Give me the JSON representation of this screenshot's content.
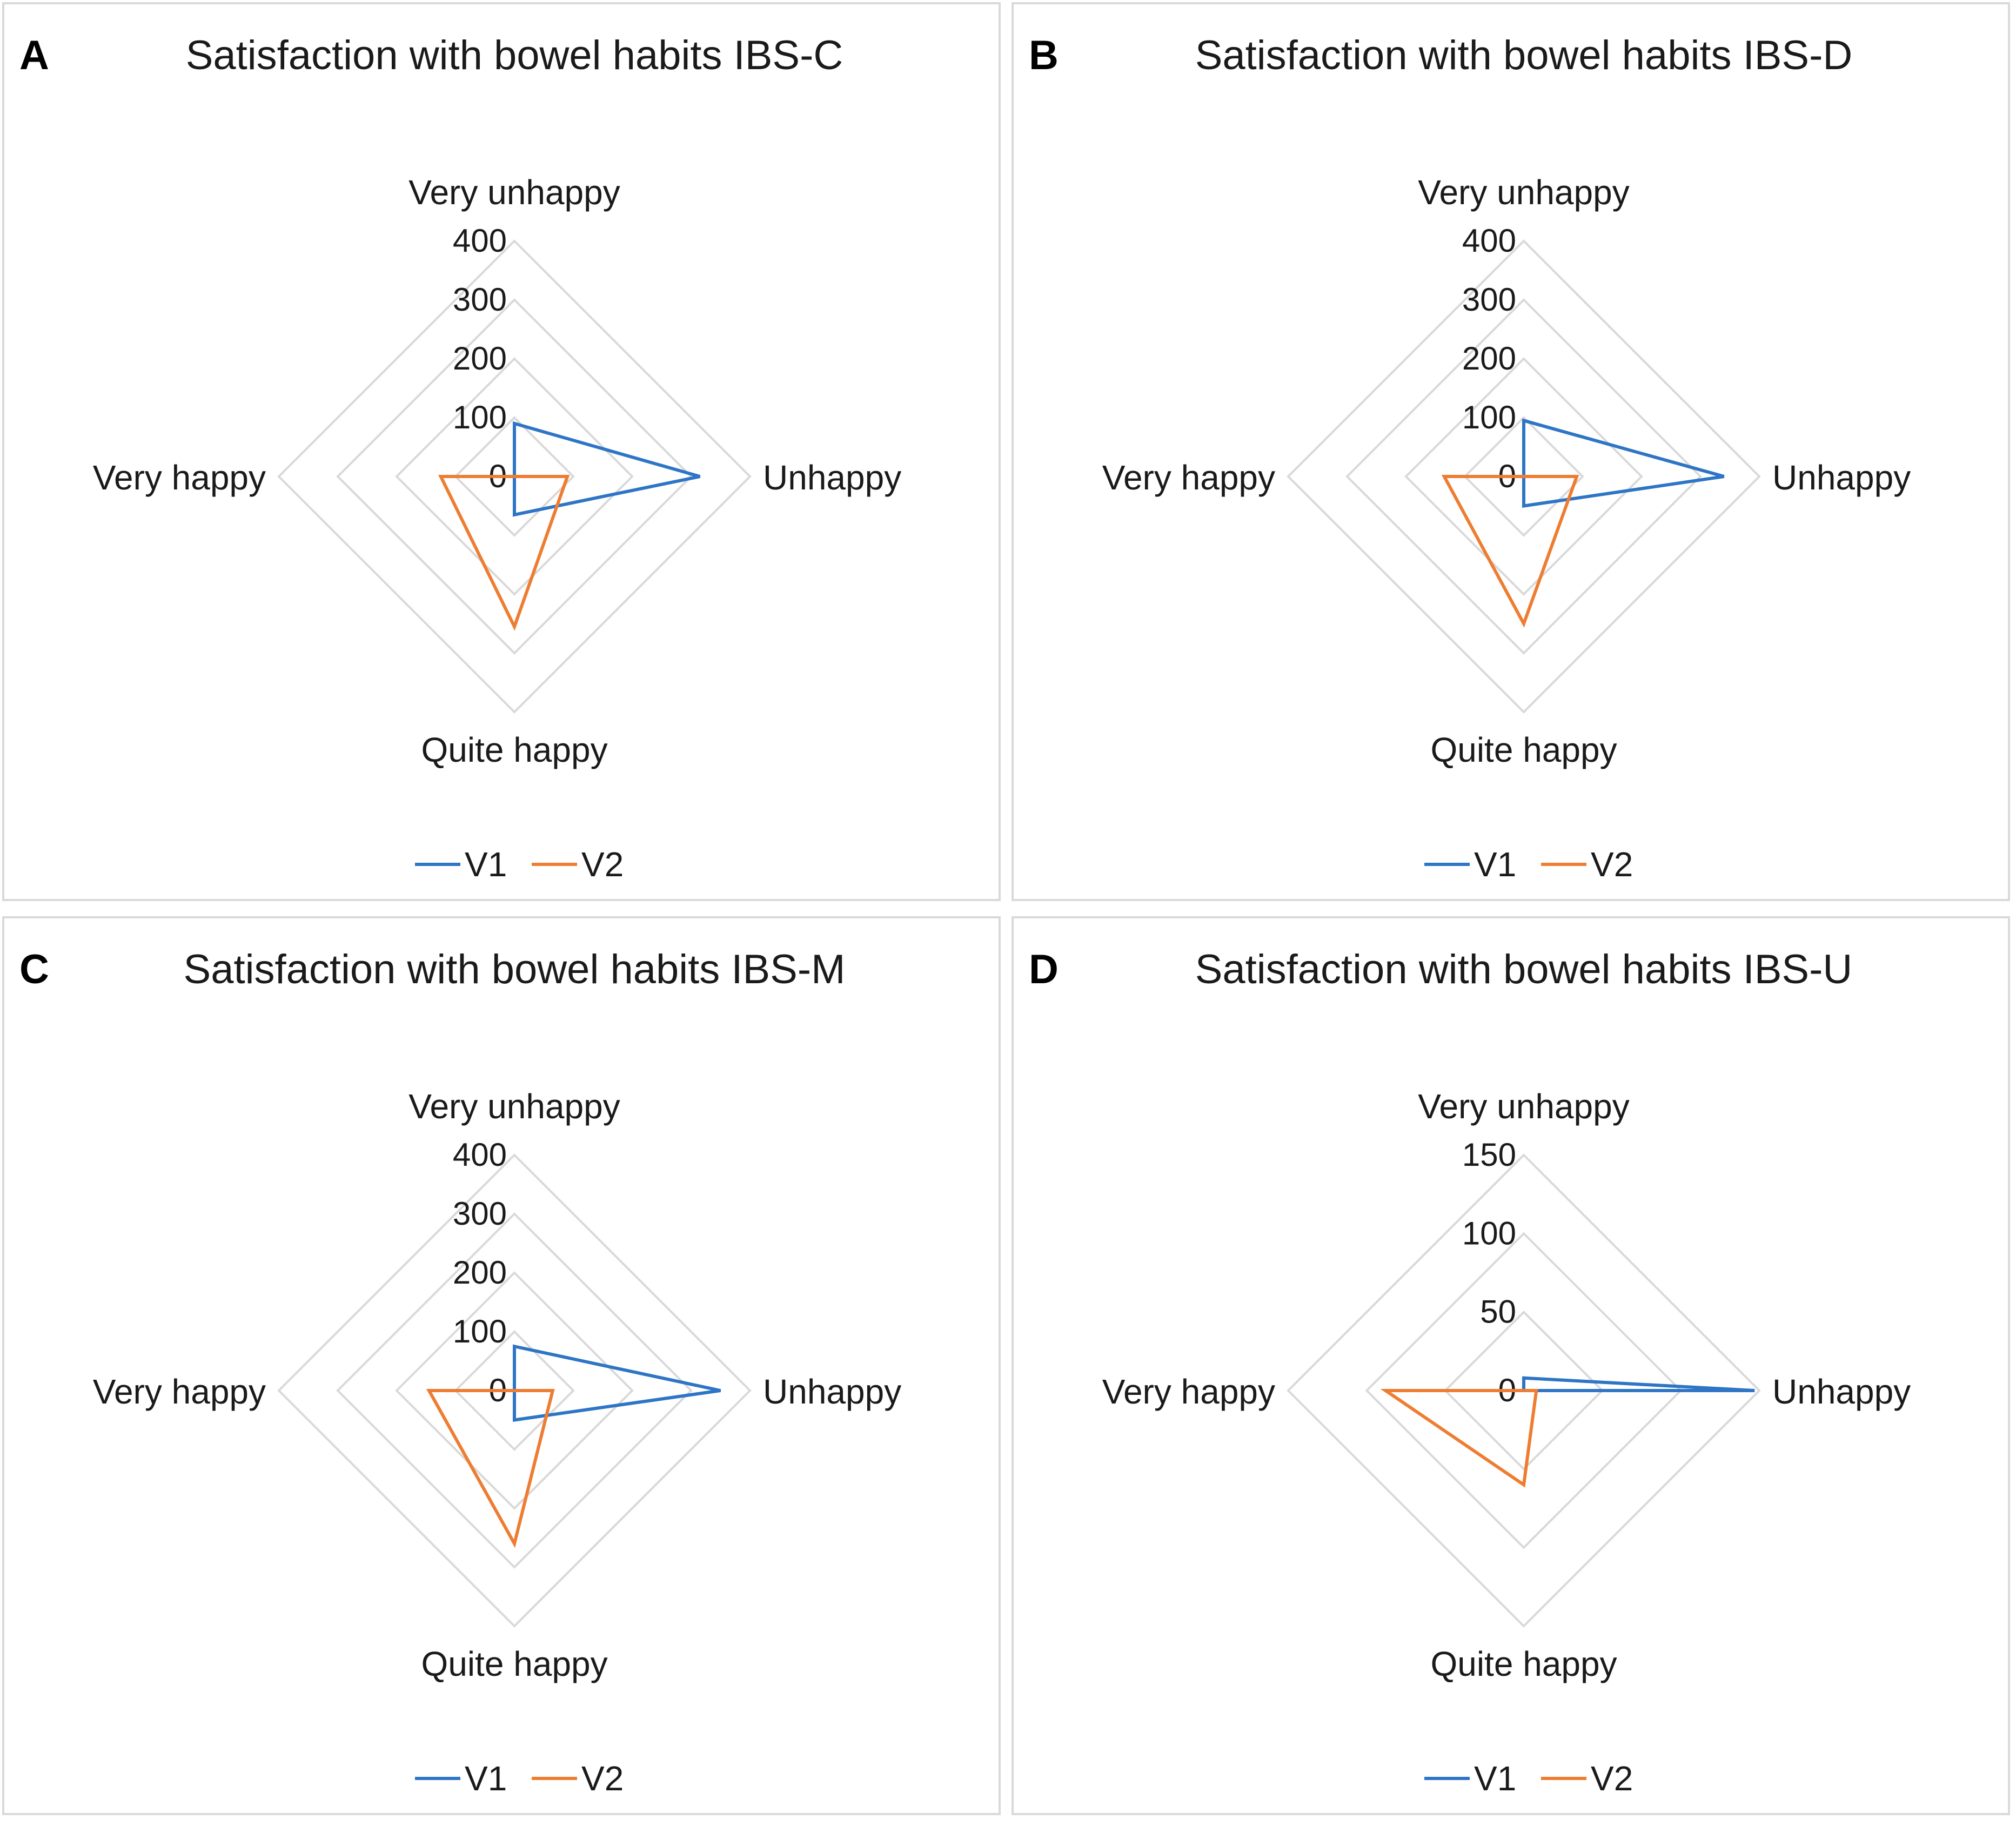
{
  "figure": {
    "series_colors": {
      "V1": "#2e75c6",
      "V2": "#ee7d31"
    },
    "grid_color": "#d9d9d9"
  },
  "chart_data": [
    {
      "type": "radar",
      "panel_letter": "A",
      "title": "Satisfaction with bowel habits IBS-C",
      "categories": [
        "Very unhappy",
        "Unhappy",
        "Quite happy",
        "Very happy"
      ],
      "ticks": [
        0,
        100,
        200,
        300,
        400
      ],
      "tick_labels": [
        "0",
        "100",
        "200",
        "300",
        "400"
      ],
      "rmax": 400,
      "series": [
        {
          "name": "V1",
          "values": [
            90,
            315,
            65,
            0
          ]
        },
        {
          "name": "V2",
          "values": [
            0,
            90,
            255,
            125
          ]
        }
      ],
      "legend": [
        "V1",
        "V2"
      ]
    },
    {
      "type": "radar",
      "panel_letter": "B",
      "title": "Satisfaction with bowel habits IBS-D",
      "categories": [
        "Very unhappy",
        "Unhappy",
        "Quite happy",
        "Very happy"
      ],
      "ticks": [
        0,
        100,
        200,
        300,
        400
      ],
      "tick_labels": [
        "0",
        "100",
        "200",
        "300",
        "400"
      ],
      "rmax": 400,
      "series": [
        {
          "name": "V1",
          "values": [
            95,
            340,
            50,
            0
          ]
        },
        {
          "name": "V2",
          "values": [
            0,
            90,
            250,
            135
          ]
        }
      ],
      "legend": [
        "V1",
        "V2"
      ]
    },
    {
      "type": "radar",
      "panel_letter": "C",
      "title": "Satisfaction with bowel habits IBS-M",
      "categories": [
        "Very unhappy",
        "Unhappy",
        "Quite happy",
        "Very happy"
      ],
      "ticks": [
        0,
        100,
        200,
        300,
        400
      ],
      "tick_labels": [
        "0",
        "100",
        "200",
        "300",
        "400"
      ],
      "rmax": 400,
      "series": [
        {
          "name": "V1",
          "values": [
            75,
            350,
            50,
            0
          ]
        },
        {
          "name": "V2",
          "values": [
            0,
            65,
            260,
            145
          ]
        }
      ],
      "legend": [
        "V1",
        "V2"
      ]
    },
    {
      "type": "radar",
      "panel_letter": "D",
      "title": "Satisfaction with bowel habits IBS-U",
      "categories": [
        "Very unhappy",
        "Unhappy",
        "Quite happy",
        "Very happy"
      ],
      "ticks": [
        0,
        50,
        100,
        150
      ],
      "tick_labels": [
        "0",
        "50",
        "100",
        "150"
      ],
      "rmax": 150,
      "series": [
        {
          "name": "V1",
          "values": [
            8,
            147,
            0,
            0
          ]
        },
        {
          "name": "V2",
          "values": [
            0,
            8,
            60,
            88
          ]
        }
      ],
      "legend": [
        "V1",
        "V2"
      ]
    }
  ]
}
